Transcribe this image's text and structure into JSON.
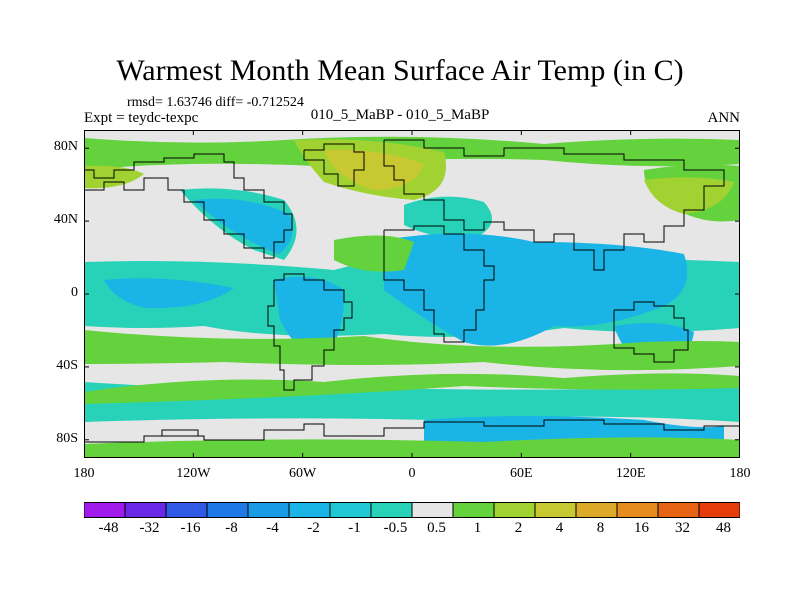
{
  "title": "Warmest Month Mean Surface Air Temp (in C)",
  "stats": "rmsd= 1.63746 diff= -0.712524",
  "experiment": "Expt = teydc-texpc",
  "subtitle": "010_5_MaBP - 010_5_MaBP",
  "season": "ANN",
  "lat_ticks": [
    {
      "label": "80N",
      "lat": 80
    },
    {
      "label": "40N",
      "lat": 40
    },
    {
      "label": "0",
      "lat": 0
    },
    {
      "label": "40S",
      "lat": -40
    },
    {
      "label": "80S",
      "lat": -80
    }
  ],
  "lon_ticks": [
    {
      "label": "180",
      "lon": -180
    },
    {
      "label": "120W",
      "lon": -120
    },
    {
      "label": "60W",
      "lon": -60
    },
    {
      "label": "0",
      "lon": 0
    },
    {
      "label": "60E",
      "lon": 60
    },
    {
      "label": "120E",
      "lon": 120
    },
    {
      "label": "180",
      "lon": 180
    }
  ],
  "colorbar": {
    "labels": [
      "-48",
      "-32",
      "-16",
      "-8",
      "-4",
      "-2",
      "-1",
      "-0.5",
      "0.5",
      "1",
      "2",
      "4",
      "8",
      "16",
      "32",
      "48"
    ],
    "colors": [
      "#a01aeb",
      "#6a28e6",
      "#2e5ae6",
      "#1e78e6",
      "#1a9be6",
      "#1ab4e6",
      "#20c8d6",
      "#28d2b8",
      "#e6e6e6",
      "#64d23c",
      "#a0d232",
      "#c8c832",
      "#dcaa28",
      "#e68c1e",
      "#e66414",
      "#e63c0a"
    ]
  },
  "map_colors": {
    "neutral": "#e6e6e6",
    "cool_light": "#28d2b8",
    "cool": "#20c8d6",
    "cool_mid": "#1ab4e6",
    "cool_deep": "#1a9be6",
    "warm_light": "#64d23c",
    "warm": "#a0d232",
    "warm_mid": "#c8c832",
    "coastline": "#000000"
  }
}
